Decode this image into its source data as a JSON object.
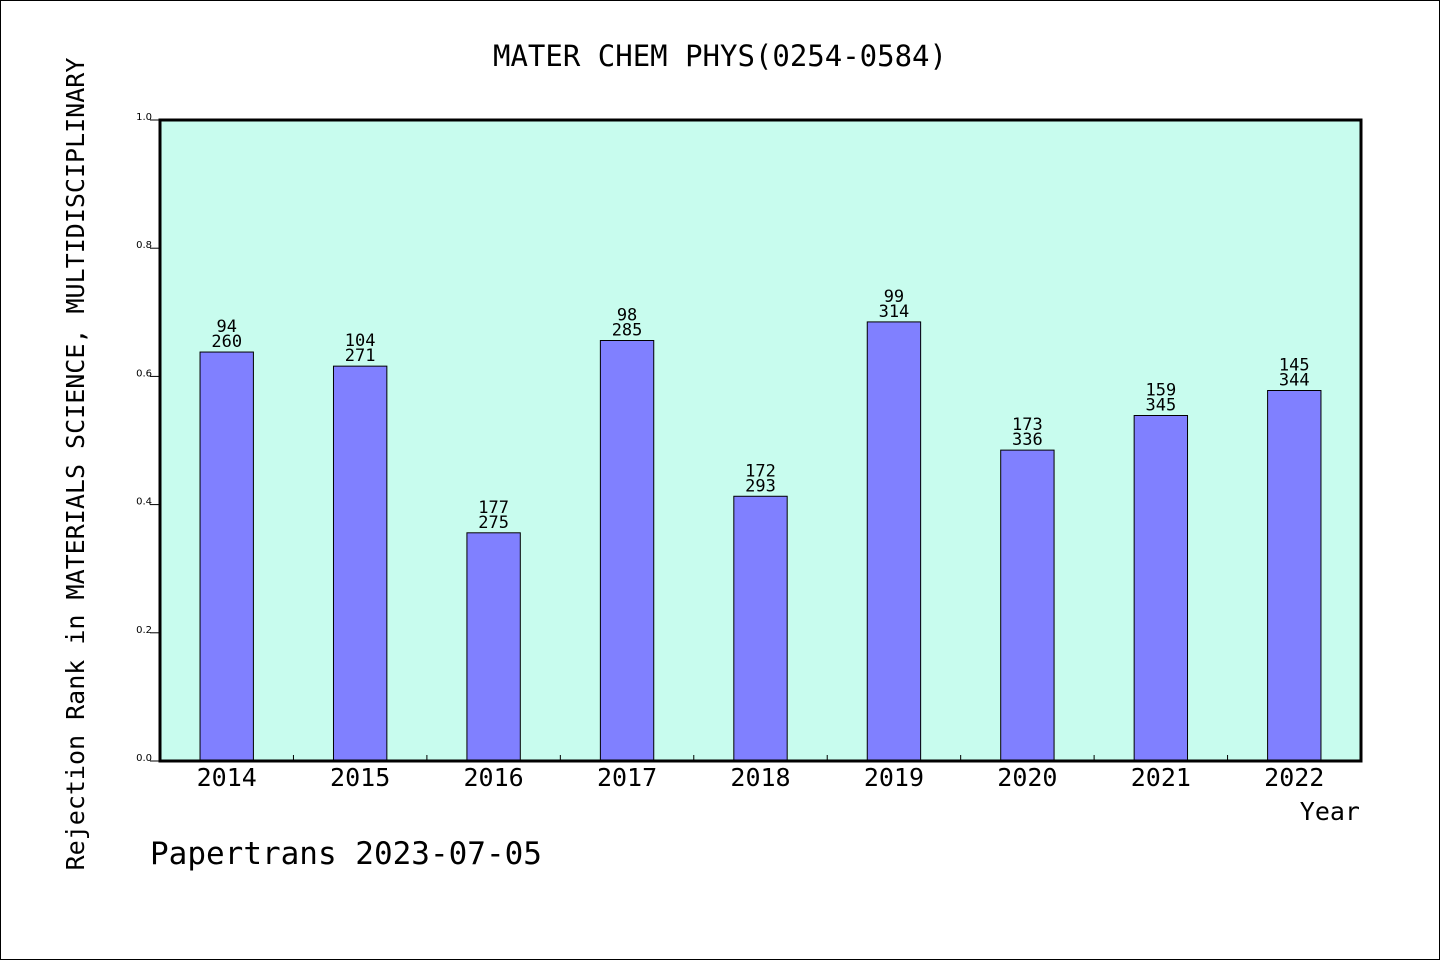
{
  "chart_data": {
    "type": "bar",
    "title": "MATER CHEM PHYS(0254-0584)",
    "xlabel": "Year",
    "ylabel": "Rejection Rank in MATERIALS SCIENCE, MULTIDISCIPLINARY",
    "ylim": [
      0.0,
      1.0
    ],
    "yticks": [
      "0.0",
      "0.2",
      "0.4",
      "0.6",
      "0.8",
      "1.0"
    ],
    "grid": false,
    "legend": "none",
    "categories": [
      "2014",
      "2015",
      "2016",
      "2017",
      "2018",
      "2019",
      "2020",
      "2021",
      "2022"
    ],
    "values": [
      0.638,
      0.616,
      0.356,
      0.656,
      0.413,
      0.685,
      0.485,
      0.539,
      0.578
    ],
    "labels_top": [
      "94",
      "104",
      "177",
      "98",
      "172",
      "99",
      "173",
      "159",
      "145"
    ],
    "labels_bottom": [
      "260",
      "271",
      "275",
      "285",
      "293",
      "314",
      "336",
      "345",
      "344"
    ],
    "colors": {
      "plot_background": "#c8fcee",
      "bar_fill": "#8080ff",
      "bar_stroke": "#000000"
    }
  },
  "footer": {
    "credit": "Papertrans 2023-07-05"
  }
}
